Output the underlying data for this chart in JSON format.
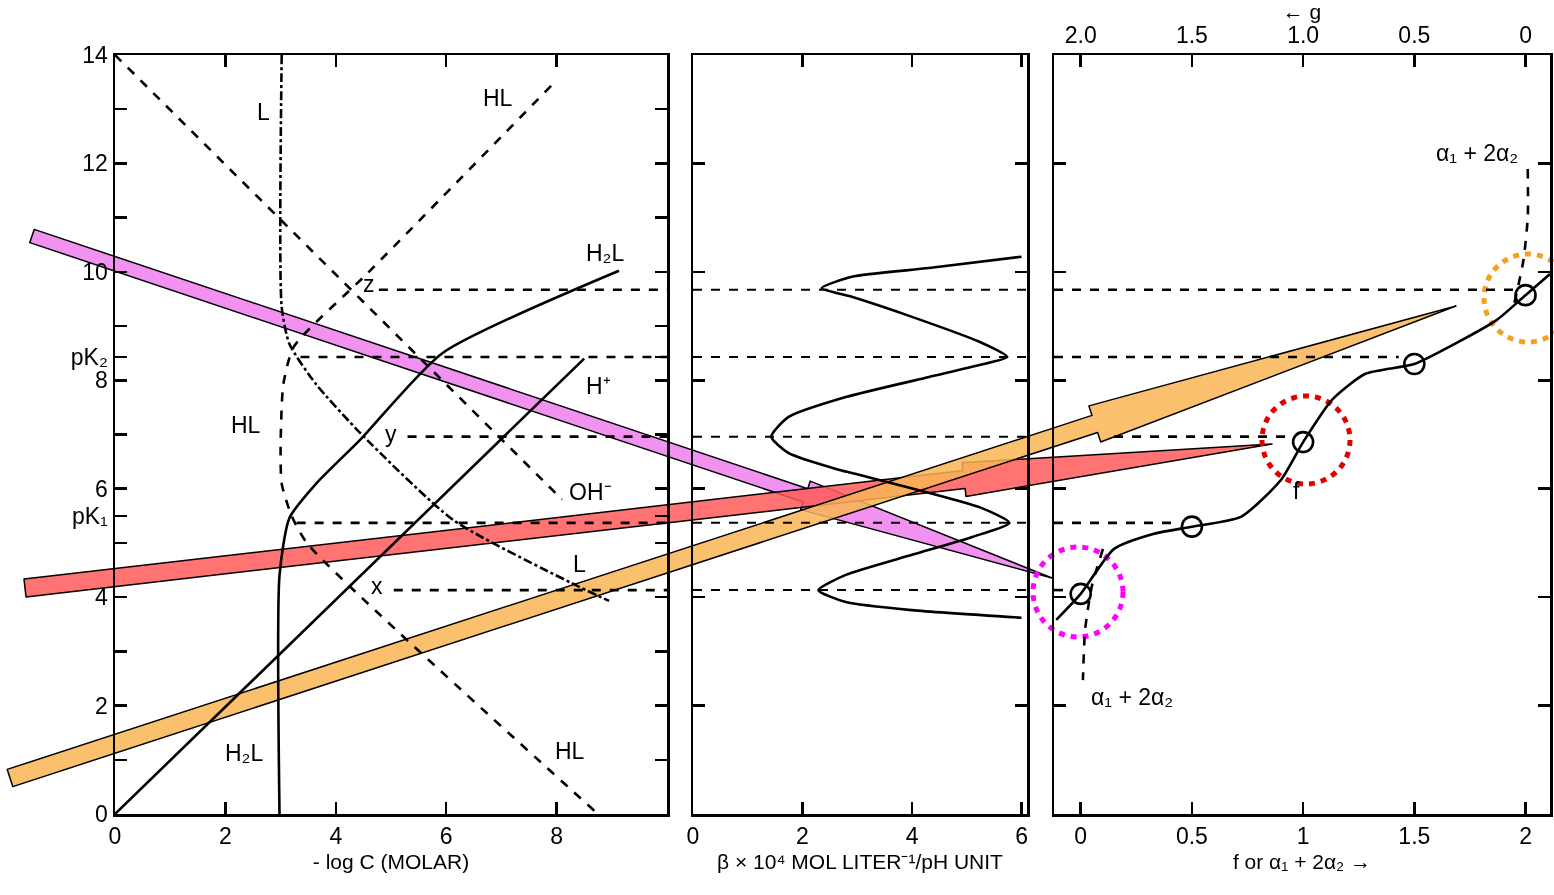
{
  "chart_data": [
    {
      "type": "line",
      "xlabel": "- log C (MOLAR)",
      "xlim": [
        0,
        10
      ],
      "xticks": [
        0,
        2,
        4,
        6,
        8
      ],
      "ylim": [
        0,
        14
      ],
      "yticks": [
        0,
        {
          "value": 1,
          "label": null
        },
        2,
        {
          "value": 3,
          "label": null
        },
        4,
        {
          "value": 5,
          "label": null
        },
        6,
        {
          "value": 7,
          "label": null
        },
        8,
        {
          "value": 9,
          "label": null
        },
        10,
        {
          "value": 11,
          "label": null
        },
        12,
        {
          "value": 13,
          "label": null
        },
        14,
        {
          "value": 5.5,
          "label": "pK₁"
        },
        {
          "value": 8.43,
          "label": "pK₂"
        }
      ],
      "grid": false,
      "series": [
        {
          "color": "#000000",
          "line_style": "solid",
          "x": [
            0,
            8.5
          ],
          "values": [
            0,
            8.4
          ]
        },
        {
          "color": "#000000",
          "line_style": "dashed",
          "x": [
            0,
            8.1
          ],
          "values": [
            14,
            5.8
          ]
        },
        {
          "color": "#000000",
          "line_style": "dashdot",
          "x": [
            3.02,
            3.02,
            3.16,
            3.64,
            4.44,
            6.13,
            8.27,
            8.95
          ],
          "values": [
            14,
            9.35,
            8.67,
            7.93,
            7.03,
            5.42,
            4.26,
            3.93
          ]
        },
        {
          "color": "#000000",
          "line_style": "dashed",
          "x": [
            7.9,
            4.58,
            3.24,
            3.05,
            3.0,
            3.02,
            3.2,
            3.49,
            8.75
          ],
          "values": [
            13.43,
            9.98,
            8.62,
            7.93,
            6.77,
            6.09,
            5.5,
            4.98,
            0
          ]
        },
        {
          "color": "#000000",
          "line_style": "solid",
          "x": [
            2.98,
            2.98,
            3.16,
            3.64,
            4.44,
            5.93,
            9.13
          ],
          "values": [
            0,
            4.4,
            5.46,
            6.09,
            6.9,
            8.5,
            10.02
          ]
        },
        {
          "color": "#000000",
          "line_style": "dashed",
          "x": [
            4.78,
            10,
            null,
            3.36,
            10,
            null,
            5.3,
            10,
            null,
            3.29,
            10,
            null,
            5.05,
            10
          ],
          "values": [
            9.67,
            9.67,
            null,
            8.43,
            8.43,
            null,
            6.96,
            6.96,
            null,
            5.37,
            5.37,
            null,
            4.13,
            4.13
          ]
        }
      ],
      "annotations": [
        "L",
        "HL",
        "H₂L",
        "H⁺",
        "HL",
        "z",
        "y",
        "x",
        "OH⁻",
        "L",
        "HL",
        "H₂L"
      ]
    },
    {
      "type": "line",
      "xlabel": "β × 10⁴ MOL LITER⁻¹/pH UNIT",
      "xlim": [
        0,
        6.1
      ],
      "xticks": [
        0,
        2,
        4,
        6
      ],
      "ylim": [
        0,
        14
      ],
      "yticks": [
        {
          "value": 2,
          "label": null
        },
        {
          "value": 4,
          "label": null
        },
        {
          "value": 6,
          "label": null
        },
        {
          "value": 8,
          "label": null
        },
        {
          "value": 10,
          "label": null
        },
        {
          "value": 12,
          "label": null
        }
      ],
      "tick_labels": "x",
      "grid": false,
      "series": [
        {
          "color": "#000000",
          "line_style": "solid",
          "x": [
            6.0,
            4.0,
            2.79,
            2.29,
            2.79,
            4.0,
            5.1,
            5.78,
            5.23,
            3.1,
            2.66,
            1.74,
            1.43,
            1.74,
            2.79,
            4.31,
            5.23,
            5.74,
            5.23,
            4.0,
            2.9,
            2.35,
            2.9,
            4.31,
            6.0
          ],
          "values": [
            3.62,
            3.76,
            3.91,
            4.13,
            4.41,
            4.78,
            5.11,
            5.37,
            5.66,
            6.24,
            6.35,
            6.66,
            6.96,
            7.32,
            7.69,
            8.06,
            8.28,
            8.43,
            8.71,
            9.17,
            9.54,
            9.7,
            9.91,
            10.07,
            10.28
          ]
        }
      ],
      "ref_lines": [
        {
          "axis": "y",
          "value": 9.67,
          "line_style": "dashed"
        },
        {
          "axis": "y",
          "value": 8.43,
          "line_style": "dashed"
        },
        {
          "axis": "y",
          "value": 6.96,
          "line_style": "dashed"
        },
        {
          "axis": "y",
          "value": 5.37,
          "line_style": "dashed"
        },
        {
          "axis": "y",
          "value": 4.13,
          "line_style": "dashed"
        }
      ]
    },
    {
      "type": "line",
      "xlabel": "f or α₁ + 2α₂ →",
      "x2label": "← g",
      "xlim": [
        -0.12,
        2.11
      ],
      "xticks": [
        0,
        0.5,
        1,
        1.5,
        2
      ],
      "x2lim": [
        2.12,
        -0.11
      ],
      "x2ticks": [
        {
          "value": 2,
          "label": "2.0"
        },
        1.5,
        {
          "value": 1,
          "label": "1.0"
        },
        0.5,
        0
      ],
      "ylim": [
        0,
        14
      ],
      "yticks": [
        {
          "value": 2,
          "label": null
        },
        {
          "value": 4,
          "label": null
        },
        {
          "value": 6,
          "label": null
        },
        {
          "value": 8,
          "label": null
        },
        {
          "value": 10,
          "label": null
        },
        {
          "value": 12,
          "label": null
        }
      ],
      "tick_labels": "x",
      "grid": false,
      "series": [
        {
          "color": "#000000",
          "line_style": "solid",
          "x": [
            -0.11,
            0,
            0.15,
            0.33,
            0.5,
            0.72,
            0.9,
            1,
            1.13,
            1.28,
            1.5,
            1.69,
            1.87,
            2,
            2.11
          ],
          "values": [
            3.58,
            4.06,
            4.89,
            5.17,
            5.3,
            5.48,
            6.16,
            6.86,
            7.64,
            8.12,
            8.3,
            8.69,
            9.11,
            9.57,
            9.96
          ]
        },
        {
          "color": "#000000",
          "line_style": "dashed",
          "x": [
            1.95,
            1.99,
            2.01,
            2.01
          ],
          "values": [
            9.43,
            10.2,
            11.0,
            11.9
          ]
        },
        {
          "color": "#000000",
          "line_style": "dashed",
          "x": [
            0.1,
            0.05,
            0.02,
            0.01
          ],
          "values": [
            4.89,
            4.2,
            3.4,
            2.47
          ]
        },
        {
          "color": "#000000",
          "line_style": "dashed",
          "x": [
            -0.12,
            1.95,
            null,
            -0.12,
            1.43,
            null,
            0.15,
            0.92,
            null,
            -0.12,
            0.44,
            null,
            -0.12,
            -0.05
          ],
          "values": [
            9.67,
            9.67,
            null,
            8.43,
            8.43,
            null,
            6.96,
            6.96,
            null,
            5.37,
            5.37,
            null,
            4.13,
            4.13
          ]
        },
        {
          "type": "scatter",
          "color": "#000000",
          "marker": "circle",
          "x": [
            0,
            0.5,
            1,
            1.5,
            2
          ],
          "values": [
            4.06,
            5.3,
            6.86,
            8.3,
            9.57
          ]
        }
      ],
      "annotations": [
        "α₁ + 2α₂",
        "α₁ + 2α₂",
        "f"
      ]
    }
  ]
}
